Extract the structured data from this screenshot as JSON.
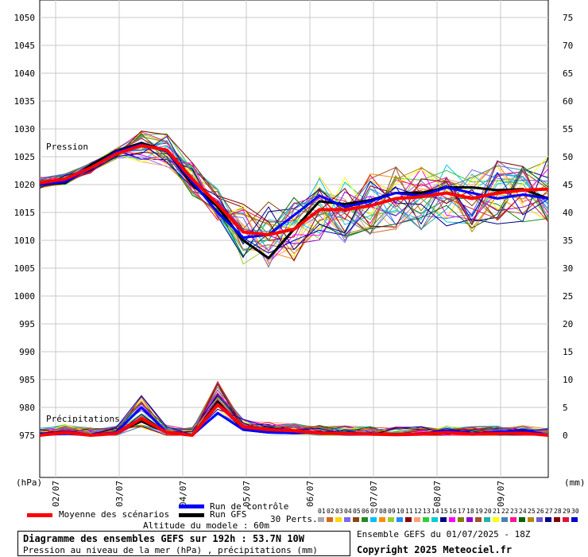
{
  "chart_data": {
    "type": "line",
    "title": "Diagramme des ensembles GEFS sur 192h : 53.7N 10W",
    "subtitle": "Pression au niveau de la mer (hPa) , précipitations (mm)",
    "left_unit": "(hPa)",
    "right_unit": "(mm)",
    "pressure_label": "Pression",
    "precip_label": "Précipitations",
    "y_left_ticks": [
      1050,
      1045,
      1040,
      1035,
      1030,
      1025,
      1020,
      1015,
      1010,
      1005,
      1000,
      995,
      990,
      985,
      980,
      975
    ],
    "y_right_ticks": [
      75,
      70,
      65,
      60,
      55,
      50,
      45,
      40,
      35,
      30,
      25,
      20,
      15,
      10,
      5,
      0
    ],
    "x_tick_labels": [
      "02/07",
      "03/07",
      "04/07",
      "05/07",
      "06/07",
      "07/07",
      "08/07",
      "09/07"
    ],
    "x_range_hours": [
      0,
      192
    ],
    "grid": true,
    "series": [
      {
        "name": "Moyenne des scénarios",
        "color": "#ff0000",
        "pressure": [
          1020.3,
          1021.0,
          1023.0,
          1025.5,
          1027.0,
          1026.2,
          1021.0,
          1016.5,
          1011.5,
          1011.0,
          1012.0,
          1015.5,
          1015.5,
          1016.2,
          1017.5,
          1017.8,
          1018.5,
          1017.5,
          1018.5,
          1019.0,
          1019.2
        ],
        "precip": [
          0,
          0.5,
          0,
          0.3,
          3,
          0.5,
          0,
          5.5,
          1.5,
          1.0,
          0.8,
          0.4,
          0.3,
          0.2,
          0.1,
          0.2,
          0.5,
          0.2,
          0.3,
          0.4,
          0
        ]
      },
      {
        "name": "Run de contrôle",
        "color": "#0000ff",
        "pressure": [
          1020.0,
          1020.5,
          1023.0,
          1025.8,
          1027.2,
          1026.0,
          1020.5,
          1015.0,
          1010.5,
          1011.0,
          1014.5,
          1018.0,
          1016.0,
          1017.0,
          1018.5,
          1018.0,
          1019.5,
          1018.5,
          1017.5,
          1018.2,
          1017.5
        ],
        "precip": [
          0,
          0.3,
          0,
          0.5,
          5,
          0.5,
          0,
          4,
          1.0,
          0.5,
          0.4,
          0.5,
          0.2,
          0.2,
          0.2,
          0.3,
          0.8,
          0.3,
          0.5,
          1.0,
          0
        ]
      },
      {
        "name": "Run GFS",
        "color": "#000000",
        "pressure": [
          1020.0,
          1020.3,
          1023.5,
          1026.0,
          1027.5,
          1026.0,
          1020.0,
          1016.0,
          1010.0,
          1006.8,
          1012.0,
          1017.0,
          1016.5,
          1017.2,
          1018.5,
          1018.5,
          1019.5,
          1019.5,
          1019.0,
          1019.2,
          1017.5
        ],
        "precip": [
          0,
          0.5,
          0,
          0.5,
          2.5,
          0.5,
          0,
          6,
          1.0,
          0.5,
          0.4,
          0.5,
          0.3,
          0.3,
          0.2,
          0.2,
          0.5,
          0.2,
          0.5,
          0.8,
          0
        ]
      }
    ],
    "perturbations": {
      "label": "30 Perts.",
      "numbers": [
        "01",
        "02",
        "03",
        "04",
        "05",
        "06",
        "07",
        "08",
        "09",
        "10",
        "11",
        "12",
        "13",
        "14",
        "15",
        "16",
        "17",
        "18",
        "19",
        "20",
        "21",
        "22",
        "23",
        "24",
        "25",
        "26",
        "27",
        "28",
        "29",
        "30"
      ],
      "colors": [
        "#a8a8a8",
        "#d2691e",
        "#ffd700",
        "#7b68ee",
        "#8b4513",
        "#228b22",
        "#00bfff",
        "#ff8c00",
        "#9acd32",
        "#1e90ff",
        "#8b0000",
        "#ffa07a",
        "#32cd32",
        "#00ced1",
        "#000080",
        "#ff00ff",
        "#808000",
        "#9400d3",
        "#a0522d",
        "#20b2aa",
        "#ffff00",
        "#4682b4",
        "#ff1493",
        "#006400",
        "#b8860b",
        "#6a5acd",
        "#00008b",
        "#7f0000",
        "#dc143c",
        "#0000cd"
      ]
    }
  },
  "legend": {
    "mean": "Moyenne des scénarios",
    "control": "Run de contrôle",
    "gfs": "Run GFS",
    "altitude": "Altitude du modele : 60m"
  },
  "footer": {
    "box_title": "Diagramme des ensembles GEFS sur 192h : 53.7N 10W",
    "box_subtitle": "Pression au niveau de la mer (hPa) , précipitations (mm)",
    "ensemble": "Ensemble GEFS du 01/07/2025 - 18Z",
    "copyright": "Copyright 2025 Meteociel.fr"
  }
}
